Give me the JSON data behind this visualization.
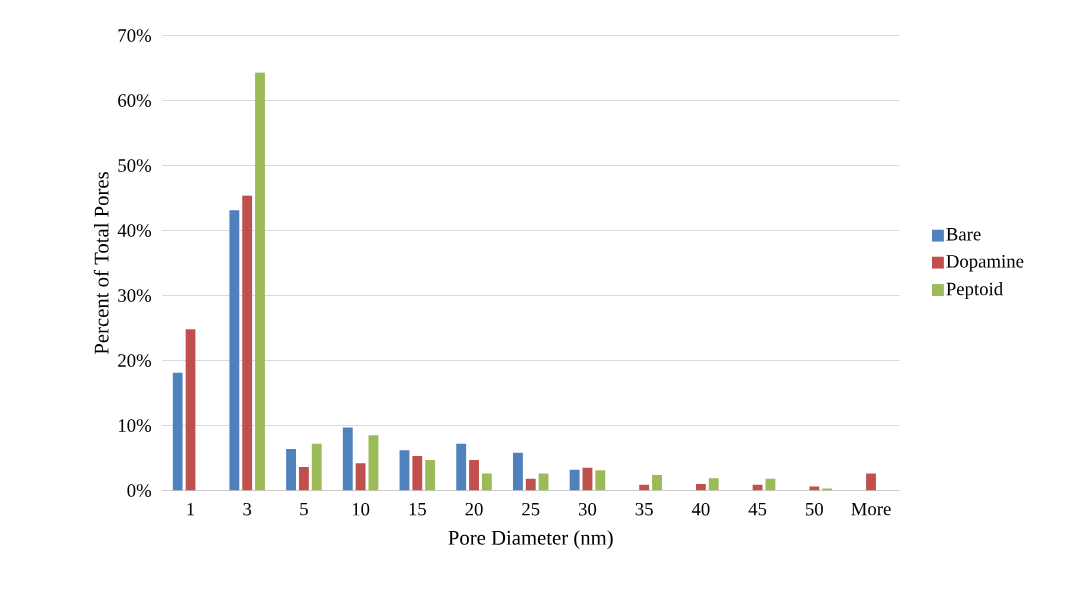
{
  "chart_data": {
    "type": "bar",
    "xlabel": "Pore Diameter (nm)",
    "ylabel": "Percent of Total Pores",
    "categories": [
      "1",
      "3",
      "5",
      "10",
      "15",
      "20",
      "25",
      "30",
      "35",
      "40",
      "45",
      "50",
      "More"
    ],
    "series": [
      {
        "name": "Bare",
        "color": "#4f81bd",
        "values": [
          18.1,
          43.1,
          6.4,
          9.7,
          6.2,
          7.2,
          5.8,
          3.2,
          0,
          0,
          0,
          0,
          0
        ]
      },
      {
        "name": "Dopamine",
        "color": "#c0504d",
        "values": [
          24.8,
          45.4,
          3.6,
          4.2,
          5.3,
          4.7,
          1.8,
          3.5,
          0.9,
          1.0,
          0.9,
          0.6,
          2.6
        ]
      },
      {
        "name": "Peptoid",
        "color": "#9bbb59",
        "values": [
          0,
          64.3,
          7.2,
          8.5,
          4.7,
          2.6,
          2.6,
          3.1,
          2.4,
          1.9,
          1.8,
          0.3,
          0
        ]
      }
    ],
    "ylim": [
      0,
      70
    ],
    "yticks": [
      {
        "value": 0,
        "label": "0%"
      },
      {
        "value": 10,
        "label": "10%"
      },
      {
        "value": 20,
        "label": "20%"
      },
      {
        "value": 30,
        "label": "30%"
      },
      {
        "value": 40,
        "label": "40%"
      },
      {
        "value": 50,
        "label": "50%"
      },
      {
        "value": 60,
        "label": "60%"
      },
      {
        "value": 70,
        "label": "70%"
      }
    ],
    "grid": "y",
    "legend": "right"
  }
}
